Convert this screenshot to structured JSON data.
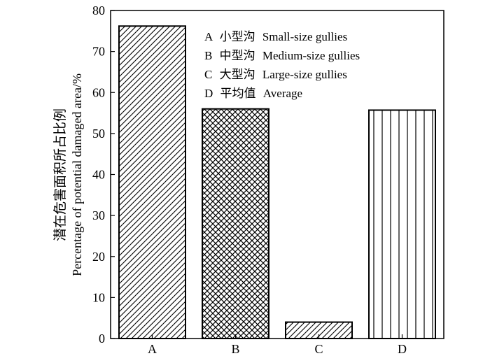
{
  "chart_data": {
    "type": "bar",
    "categories": [
      "A",
      "B",
      "C",
      "D"
    ],
    "values": [
      76.2,
      56.0,
      4.0,
      55.7
    ],
    "ylim": [
      0,
      80
    ],
    "yticks": [
      0,
      10,
      20,
      30,
      40,
      50,
      60,
      70,
      80
    ],
    "ylabel_cn": "潜在危害面积所占比例",
    "ylabel_en": "Percentage of potential damaged area/%",
    "xlabel": "",
    "title": "",
    "grid": false,
    "legend_position": "top-right",
    "bar_patterns": [
      "diagonal",
      "crosshatch",
      "diagonal",
      "vertical"
    ],
    "legend": [
      {
        "key": "A",
        "cn": "小型沟",
        "en": "Small-size gullies"
      },
      {
        "key": "B",
        "cn": "中型沟",
        "en": "Medium-size gullies"
      },
      {
        "key": "C",
        "cn": "大型沟",
        "en": "Large-size gullies"
      },
      {
        "key": "D",
        "cn": "平均值",
        "en": "Average"
      }
    ]
  }
}
